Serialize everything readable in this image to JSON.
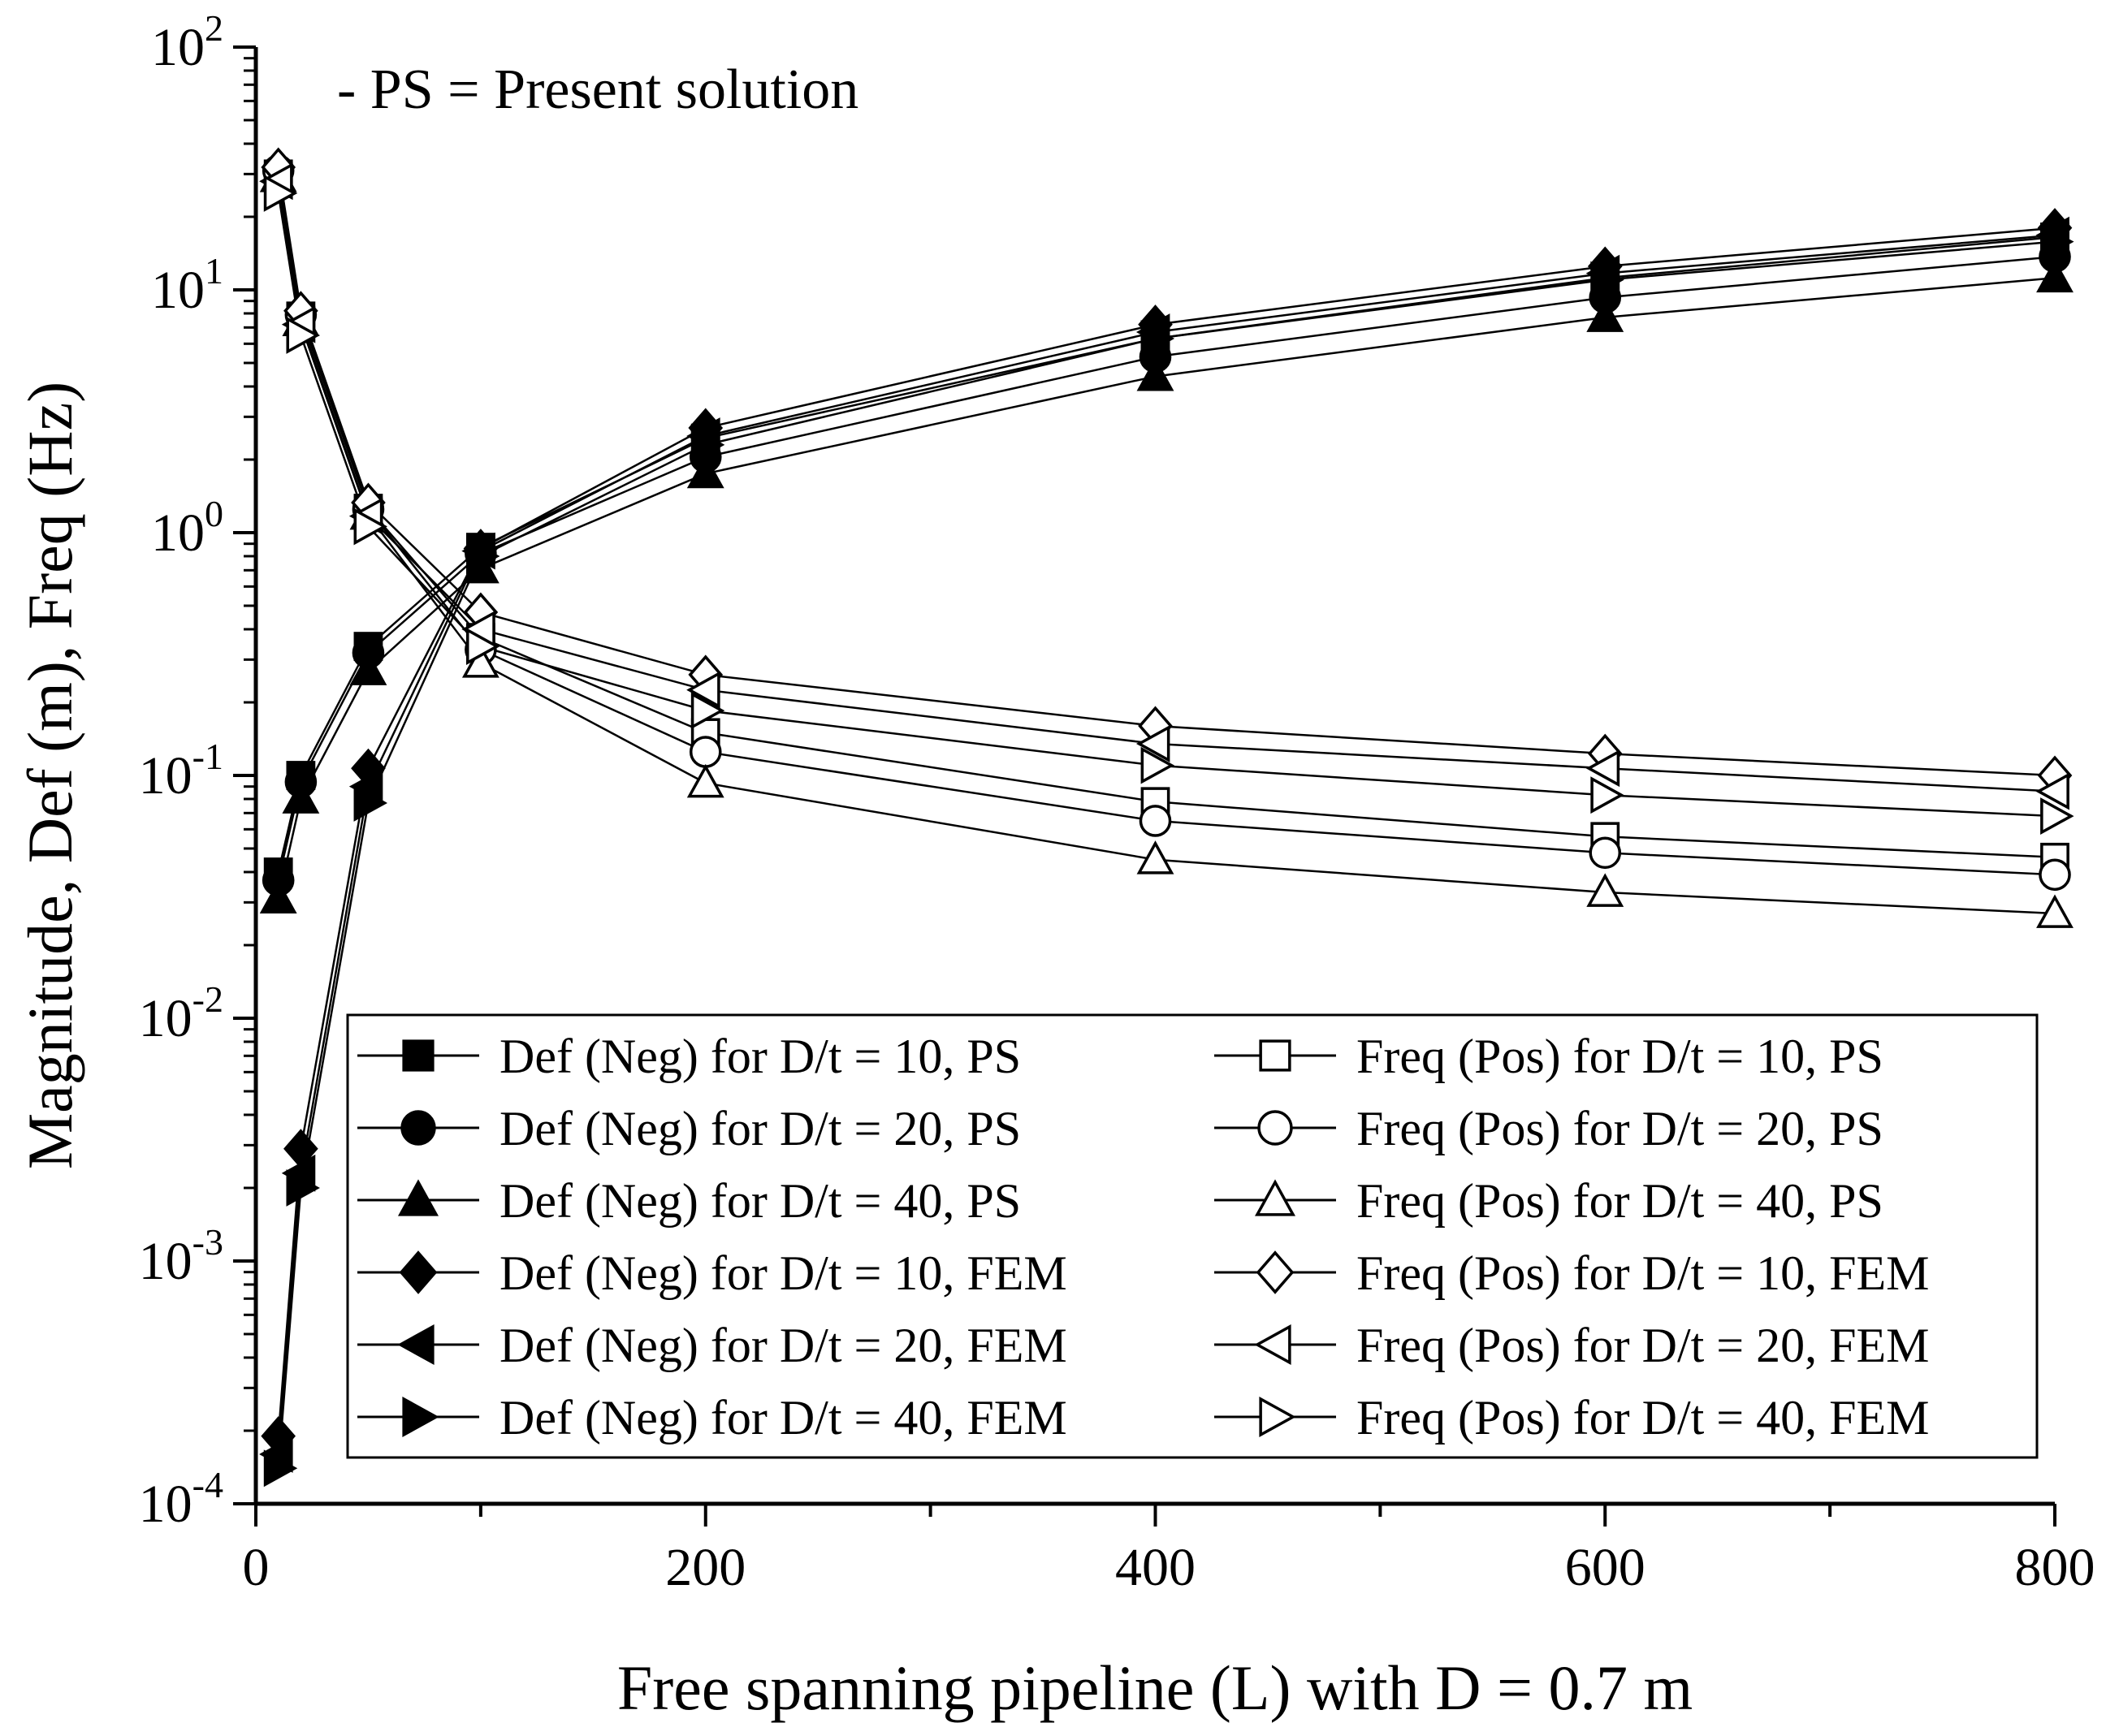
{
  "chart_data": {
    "type": "line",
    "yscale": "log",
    "xlim": [
      0,
      800
    ],
    "ylim": [
      0.0001,
      100
    ],
    "xticks": [
      "0",
      "200",
      "400",
      "600",
      "800"
    ],
    "yticks": [
      {
        "base": "10",
        "exp": "-4"
      },
      {
        "base": "10",
        "exp": "-3"
      },
      {
        "base": "10",
        "exp": "-2"
      },
      {
        "base": "10",
        "exp": "-1"
      },
      {
        "base": "10",
        "exp": "0"
      },
      {
        "base": "10",
        "exp": "1"
      },
      {
        "base": "10",
        "exp": "2"
      }
    ],
    "xlabel": "Free spanning pipeline (L) with D = 0.7 m",
    "ylabel": "Magnitude, Def (m), Freq (Hz)",
    "annotation": "- PS = Present solution",
    "legend_position": "lower-right",
    "series": [
      {
        "name": "Def (Neg) for D/t = 10, PS",
        "marker": "square",
        "filled": true,
        "x": [
          10,
          20,
          50,
          100,
          200,
          400,
          600,
          800
        ],
        "y": [
          0.04,
          0.1,
          0.34,
          0.87,
          2.45,
          6.3,
          11.2,
          16.5
        ]
      },
      {
        "name": "Def (Neg) for D/t = 20, PS",
        "marker": "circle",
        "filled": true,
        "x": [
          10,
          20,
          50,
          100,
          200,
          400,
          600,
          800
        ],
        "y": [
          0.037,
          0.094,
          0.32,
          0.82,
          2.05,
          5.3,
          9.3,
          13.7
        ]
      },
      {
        "name": "Def (Neg) for D/t = 40, PS",
        "marker": "triangle-up",
        "filled": true,
        "x": [
          10,
          20,
          50,
          100,
          200,
          400,
          600,
          800
        ],
        "y": [
          0.031,
          0.08,
          0.27,
          0.71,
          1.75,
          4.4,
          7.7,
          11.2
        ]
      },
      {
        "name": "Def (Neg) for D/t = 10, FEM",
        "marker": "diamond",
        "filled": true,
        "x": [
          10,
          20,
          50,
          100,
          200,
          400,
          600,
          800
        ],
        "y": [
          0.00019,
          0.0029,
          0.107,
          0.86,
          2.7,
          7.2,
          12.5,
          18.0
        ]
      },
      {
        "name": "Def (Neg) for D/t = 20, FEM",
        "marker": "triangle-left",
        "filled": true,
        "x": [
          10,
          20,
          50,
          100,
          200,
          400,
          600,
          800
        ],
        "y": [
          0.00016,
          0.0023,
          0.09,
          0.84,
          2.5,
          6.7,
          11.7,
          16.8
        ]
      },
      {
        "name": "Def (Neg) for D/t = 40, FEM",
        "marker": "triangle-right",
        "filled": true,
        "x": [
          10,
          20,
          50,
          100,
          200,
          400,
          600,
          800
        ],
        "y": [
          0.00014,
          0.002,
          0.077,
          0.8,
          2.3,
          6.3,
          11.0,
          15.8
        ]
      },
      {
        "name": "Freq (Pos) for D/t = 10, PS",
        "marker": "square",
        "filled": false,
        "x": [
          10,
          20,
          50,
          100,
          200,
          400,
          600,
          800
        ],
        "y": [
          30.0,
          7.8,
          1.26,
          0.37,
          0.15,
          0.078,
          0.056,
          0.046
        ]
      },
      {
        "name": "Freq (Pos) for D/t = 20, PS",
        "marker": "circle",
        "filled": false,
        "x": [
          10,
          20,
          50,
          100,
          200,
          400,
          600,
          800
        ],
        "y": [
          31.0,
          7.9,
          1.25,
          0.33,
          0.125,
          0.065,
          0.048,
          0.039
        ]
      },
      {
        "name": "Freq (Pos) for D/t = 40, PS",
        "marker": "triangle-up",
        "filled": false,
        "x": [
          10,
          20,
          50,
          100,
          200,
          400,
          600,
          800
        ],
        "y": [
          29.0,
          7.4,
          1.18,
          0.29,
          0.093,
          0.045,
          0.033,
          0.027
        ]
      },
      {
        "name": "Freq (Pos) for D/t = 10, FEM",
        "marker": "diamond",
        "filled": false,
        "x": [
          10,
          20,
          50,
          100,
          200,
          400,
          600,
          800
        ],
        "y": [
          32.0,
          8.2,
          1.33,
          0.47,
          0.26,
          0.16,
          0.123,
          0.1
        ]
      },
      {
        "name": "Freq (Pos) for D/t = 20, FEM",
        "marker": "triangle-left",
        "filled": false,
        "x": [
          10,
          20,
          50,
          100,
          200,
          400,
          600,
          800
        ],
        "y": [
          28.0,
          7.2,
          1.17,
          0.4,
          0.225,
          0.135,
          0.107,
          0.086
        ]
      },
      {
        "name": "Freq (Pos) for D/t = 40, FEM",
        "marker": "triangle-right",
        "filled": false,
        "x": [
          10,
          20,
          50,
          100,
          200,
          400,
          600,
          800
        ],
        "y": [
          25.0,
          6.5,
          1.06,
          0.34,
          0.185,
          0.11,
          0.083,
          0.068
        ]
      }
    ]
  }
}
